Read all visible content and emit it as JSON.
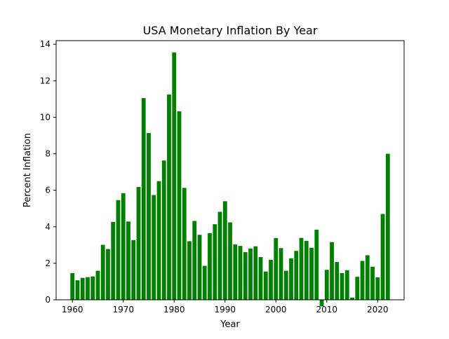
{
  "chart_data": {
    "type": "bar",
    "title": "USA Monetary Inflation By Year",
    "xlabel": "Year",
    "ylabel": "Percent Inflation",
    "bar_color": "#008000",
    "grid": false,
    "legend": "none",
    "xlim": [
      1956.8,
      2025.2
    ],
    "ylim": [
      0,
      14.2
    ],
    "xticks": [
      1960,
      1970,
      1980,
      1990,
      2000,
      2010,
      2020
    ],
    "yticks": [
      0,
      2,
      4,
      6,
      8,
      10,
      12,
      14
    ],
    "x": [
      1960,
      1961,
      1962,
      1963,
      1964,
      1965,
      1966,
      1967,
      1968,
      1969,
      1970,
      1971,
      1972,
      1973,
      1974,
      1975,
      1976,
      1977,
      1978,
      1979,
      1980,
      1981,
      1982,
      1983,
      1984,
      1985,
      1986,
      1987,
      1988,
      1989,
      1990,
      1991,
      1992,
      1993,
      1994,
      1995,
      1996,
      1997,
      1998,
      1999,
      2000,
      2001,
      2002,
      2003,
      2004,
      2005,
      2006,
      2007,
      2008,
      2009,
      2010,
      2011,
      2012,
      2013,
      2014,
      2015,
      2016,
      2017,
      2018,
      2019,
      2020,
      2021,
      2022
    ],
    "values": [
      1.46,
      1.07,
      1.2,
      1.24,
      1.28,
      1.59,
      3.01,
      2.78,
      4.27,
      5.46,
      5.84,
      4.29,
      3.27,
      6.18,
      11.05,
      9.14,
      5.74,
      6.5,
      7.63,
      11.25,
      13.55,
      10.33,
      6.13,
      3.21,
      4.32,
      3.56,
      1.86,
      3.65,
      4.14,
      4.82,
      5.4,
      4.24,
      3.03,
      2.95,
      2.61,
      2.81,
      2.93,
      2.34,
      1.55,
      2.19,
      3.38,
      2.83,
      1.59,
      2.27,
      2.68,
      3.39,
      3.23,
      2.85,
      3.84,
      -0.36,
      1.64,
      3.16,
      2.07,
      1.46,
      1.62,
      0.12,
      1.26,
      2.13,
      2.44,
      1.81,
      1.23,
      4.7,
      8.0
    ]
  }
}
